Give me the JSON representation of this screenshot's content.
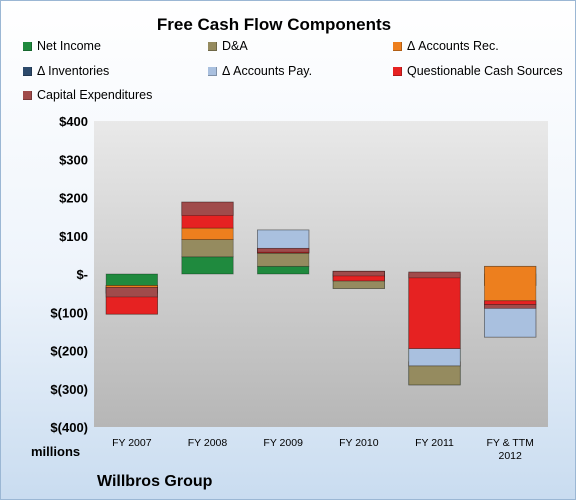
{
  "chart_data": {
    "type": "bar",
    "subtype": "waterfall-stacked",
    "title": "Free Cash Flow Components",
    "ylabel_units": "millions",
    "company": "Willbros Group",
    "ylim": [
      -400,
      400
    ],
    "yticks": [
      {
        "value": 400,
        "label": "$400"
      },
      {
        "value": 300,
        "label": "$300"
      },
      {
        "value": 200,
        "label": "$200"
      },
      {
        "value": 100,
        "label": "$100"
      },
      {
        "value": 0,
        "label": "$-"
      },
      {
        "value": -100,
        "label": "$(100)"
      },
      {
        "value": -200,
        "label": "$(200)"
      },
      {
        "value": -300,
        "label": "$(300)"
      },
      {
        "value": -400,
        "label": "$(400)"
      }
    ],
    "categories": [
      "FY 2007",
      "FY 2008",
      "FY 2009",
      "FY 2010",
      "FY 2011",
      "FY & TTM 2012"
    ],
    "legend_position": "top",
    "colors": {
      "Net Income": "#1f8a3e",
      "D&A": "#958b5f",
      "Δ Accounts Rec.": "#ed7f1e",
      "Δ Inventories": "#2c4a6b",
      "Δ Accounts Pay.": "#a9c0df",
      "Questionable Cash Sources": "#e62222",
      "Capital Expenditures": "#a04b4b"
    },
    "series": [
      {
        "name": "Net Income",
        "values": [
          -50,
          45,
          20,
          -38,
          -290,
          -30
        ]
      },
      {
        "name": "D&A",
        "values": [
          20,
          45,
          35,
          45,
          60,
          50
        ]
      },
      {
        "name": "Δ Accounts Rec.",
        "values": [
          -75,
          30,
          60,
          -10,
          -10,
          -185
        ]
      },
      {
        "name": "Δ Inventories",
        "values": [
          0,
          0,
          0,
          -5,
          0,
          0
        ]
      },
      {
        "name": "Δ Accounts Pay.",
        "values": [
          0,
          0,
          -60,
          -10,
          45,
          95
        ]
      },
      {
        "name": "Questionable Cash Sources",
        "values": [
          70,
          68,
          12,
          25,
          200,
          -10
        ]
      },
      {
        "name": "Capital Expenditures",
        "values": [
          -25,
          -35,
          -10,
          -12,
          -15,
          -10
        ]
      }
    ],
    "grid": false
  },
  "legend": [
    {
      "label": "Net Income",
      "key": "Net Income"
    },
    {
      "label": "D&A",
      "key": "D&A"
    },
    {
      "label": "Δ Accounts Rec.",
      "key": "Δ Accounts Rec."
    },
    {
      "label": "Δ Inventories",
      "key": "Δ Inventories"
    },
    {
      "label": "Δ Accounts Pay.",
      "key": "Δ Accounts Pay."
    },
    {
      "label": "Questionable Cash Sources",
      "key": "Questionable Cash Sources"
    },
    {
      "label": "Capital Expenditures",
      "key": "Capital Expenditures"
    }
  ]
}
